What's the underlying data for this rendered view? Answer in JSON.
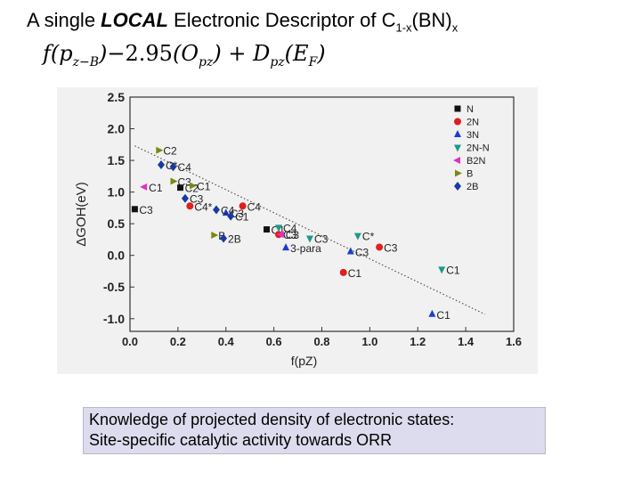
{
  "slide": {
    "title_prefix": "A single ",
    "title_emphasis": "LOCAL",
    "title_mid": " Electronic Descriptor of C",
    "title_sub1": "1-x",
    "title_paren": "(BN)",
    "title_sub2": "x",
    "formula": {
      "f": "f",
      "arg_open": "(p",
      "arg_sub": "z−B",
      "arg_close": ")",
      "coef": "−2.95",
      "O_open": "(O",
      "O_sub": "pz",
      "O_close": ")",
      "plus": " + D",
      "D_sub": "pz",
      "E_open": "(E",
      "E_sub": "F",
      "E_close": ")"
    },
    "note_line1": "Knowledge of projected density of electronic states:",
    "note_line2": "Site-specific catalytic activity towards ORR"
  },
  "chart_data": {
    "type": "scatter",
    "title": "",
    "xlabel": "f(pZ)",
    "ylabel": "ΔGOH(eV)",
    "xlim": [
      0.0,
      1.6
    ],
    "ylim": [
      -1.2,
      2.5
    ],
    "xticks": [
      "0.0",
      "0.2",
      "0.4",
      "0.6",
      "0.8",
      "1.0",
      "1.2",
      "1.4",
      "1.6"
    ],
    "yticks": [
      "2.5",
      "2.0",
      "1.5",
      "1.0",
      "0.5",
      "0.0",
      "-0.5",
      "-1.0"
    ],
    "grid": false,
    "legend_position": "top-right",
    "fit_line": {
      "x": [
        0.02,
        1.48
      ],
      "y": [
        1.73,
        -0.93
      ]
    },
    "series": [
      {
        "name": "N",
        "marker": "square",
        "color": "#111111",
        "points": [
          {
            "x": 0.02,
            "y": 0.73,
            "label": "C3"
          },
          {
            "x": 0.21,
            "y": 1.07,
            "label": "C2"
          },
          {
            "x": 0.57,
            "y": 0.41,
            "label": "C1"
          }
        ]
      },
      {
        "name": "2N",
        "marker": "circle",
        "color": "#e0201a",
        "points": [
          {
            "x": 0.25,
            "y": 0.78,
            "label": "C4*"
          },
          {
            "x": 0.47,
            "y": 0.78,
            "label": "C4"
          },
          {
            "x": 0.62,
            "y": 0.33,
            "label": "C3"
          },
          {
            "x": 0.89,
            "y": -0.27,
            "label": "C1"
          },
          {
            "x": 1.04,
            "y": 0.13,
            "label": "C3"
          }
        ]
      },
      {
        "name": "3N",
        "marker": "triangle-up",
        "color": "#1a3fd0",
        "points": [
          {
            "x": 0.4,
            "y": 0.67,
            "label": "C3"
          },
          {
            "x": 0.65,
            "y": 0.12,
            "label": "3-para"
          },
          {
            "x": 0.92,
            "y": 0.06,
            "label": "C3"
          },
          {
            "x": 1.26,
            "y": -0.93,
            "label": "C1"
          }
        ]
      },
      {
        "name": "2N-N",
        "marker": "triangle-down",
        "color": "#1a9a8a",
        "points": [
          {
            "x": 0.62,
            "y": 0.44,
            "label": "C4"
          },
          {
            "x": 0.75,
            "y": 0.27,
            "label": "C3"
          },
          {
            "x": 0.95,
            "y": 0.31,
            "label": "C*"
          },
          {
            "x": 1.3,
            "y": -0.22,
            "label": "C1"
          }
        ]
      },
      {
        "name": "B2N",
        "marker": "triangle-left",
        "color": "#e030c0",
        "points": [
          {
            "x": 0.06,
            "y": 1.08,
            "label": "C1"
          },
          {
            "x": 0.63,
            "y": 0.33,
            "label": "C3"
          }
        ]
      },
      {
        "name": "B",
        "marker": "triangle-right",
        "color": "#7a8a10",
        "points": [
          {
            "x": 0.12,
            "y": 1.66,
            "label": "C2"
          },
          {
            "x": 0.18,
            "y": 1.17,
            "label": "C3"
          },
          {
            "x": 0.26,
            "y": 1.1,
            "label": "C1"
          },
          {
            "x": 0.35,
            "y": 0.32,
            "label": "B"
          }
        ]
      },
      {
        "name": "2B",
        "marker": "diamond",
        "color": "#1a3aa0",
        "points": [
          {
            "x": 0.13,
            "y": 1.43,
            "label": "C*"
          },
          {
            "x": 0.18,
            "y": 1.4,
            "label": "C4"
          },
          {
            "x": 0.23,
            "y": 0.9,
            "label": "C3"
          },
          {
            "x": 0.36,
            "y": 0.72,
            "label": "C4"
          },
          {
            "x": 0.42,
            "y": 0.62,
            "label": "C1"
          },
          {
            "x": 0.39,
            "y": 0.27,
            "label": "2B"
          }
        ]
      }
    ]
  }
}
